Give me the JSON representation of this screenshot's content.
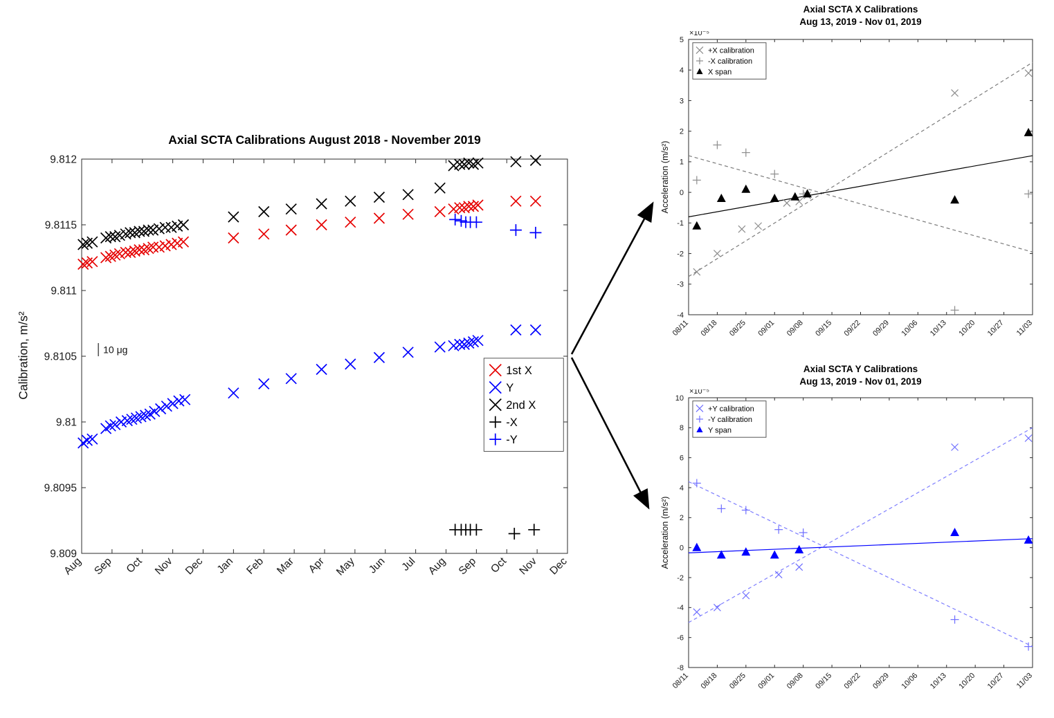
{
  "page": {
    "background": "#ffffff"
  },
  "chart_data": [
    {
      "id": "main",
      "type": "scatter",
      "title": "Axial SCTA Calibrations August 2018 - November 2019",
      "ylabel": "Calibration, m/s²",
      "xlim": [
        0,
        16
      ],
      "ylim": [
        9.809,
        9.812
      ],
      "xticks": {
        "labels": [
          "Aug",
          "Sep",
          "Oct",
          "Nov",
          "Dec",
          "Jan",
          "Feb",
          "Mar",
          "Apr",
          "May",
          "Jun",
          "Jul",
          "Aug",
          "Sep",
          "Oct",
          "Nov",
          "Dec"
        ],
        "pos": [
          0,
          1,
          2,
          3,
          4,
          5,
          6,
          7,
          8,
          9,
          10,
          11,
          12,
          13,
          14,
          15,
          16
        ]
      },
      "yticks": {
        "labels": [
          "9.809",
          "9.8095",
          "9.81",
          "9.8105",
          "9.811",
          "9.8115",
          "9.812"
        ],
        "pos": [
          9.809,
          9.8095,
          9.81,
          9.8105,
          9.811,
          9.8115,
          9.812
        ]
      },
      "annotation": {
        "text": "10 μg",
        "bar_x": 0.55,
        "bar_y1": 9.8105,
        "bar_y2": 9.8106
      },
      "legend": [
        {
          "label": "1st X",
          "marker": "x",
          "color": "#e60000"
        },
        {
          "label": "Y",
          "marker": "x",
          "color": "#0000ff"
        },
        {
          "label": "2nd X",
          "marker": "x",
          "color": "#000000"
        },
        {
          "label": "-X",
          "marker": "plus",
          "color": "#000000"
        },
        {
          "label": "-Y",
          "marker": "plus",
          "color": "#0000ff"
        }
      ],
      "series": [
        {
          "name": "1st X",
          "marker": "x",
          "color": "#e60000",
          "points": [
            [
              0.05,
              9.8112
            ],
            [
              0.18,
              9.81121
            ],
            [
              0.35,
              9.81122
            ],
            [
              0.8,
              9.81125
            ],
            [
              0.95,
              9.81126
            ],
            [
              1.1,
              9.81127
            ],
            [
              1.25,
              9.81128
            ],
            [
              1.45,
              9.81129
            ],
            [
              1.6,
              9.81129
            ],
            [
              1.75,
              9.8113
            ],
            [
              1.9,
              9.81131
            ],
            [
              2.05,
              9.81131
            ],
            [
              2.2,
              9.81132
            ],
            [
              2.35,
              9.81133
            ],
            [
              2.55,
              9.81133
            ],
            [
              2.75,
              9.81134
            ],
            [
              2.95,
              9.81135
            ],
            [
              3.15,
              9.81136
            ],
            [
              3.35,
              9.81137
            ],
            [
              5.0,
              9.8114
            ],
            [
              6.0,
              9.81143
            ],
            [
              6.9,
              9.81146
            ],
            [
              7.9,
              9.8115
            ],
            [
              8.85,
              9.81152
            ],
            [
              9.8,
              9.81155
            ],
            [
              10.75,
              9.81158
            ],
            [
              11.8,
              9.8116
            ],
            [
              12.25,
              9.81162
            ],
            [
              12.45,
              9.81163
            ],
            [
              12.6,
              9.81163
            ],
            [
              12.75,
              9.81164
            ],
            [
              12.9,
              9.81164
            ],
            [
              13.05,
              9.81165
            ],
            [
              14.3,
              9.81168
            ],
            [
              14.95,
              9.81168
            ]
          ]
        },
        {
          "name": "Y",
          "marker": "x",
          "color": "#0000ff",
          "points": [
            [
              0.05,
              9.80984
            ],
            [
              0.18,
              9.80986
            ],
            [
              0.35,
              9.80987
            ],
            [
              0.8,
              9.80995
            ],
            [
              0.95,
              9.80997
            ],
            [
              1.1,
              9.80998
            ],
            [
              1.3,
              9.81
            ],
            [
              1.5,
              9.81001
            ],
            [
              1.65,
              9.81002
            ],
            [
              1.8,
              9.81003
            ],
            [
              1.95,
              9.81004
            ],
            [
              2.1,
              9.81005
            ],
            [
              2.25,
              9.81006
            ],
            [
              2.4,
              9.81008
            ],
            [
              2.6,
              9.8101
            ],
            [
              2.8,
              9.81012
            ],
            [
              3.0,
              9.81014
            ],
            [
              3.2,
              9.81016
            ],
            [
              3.4,
              9.81017
            ],
            [
              5.0,
              9.81022
            ],
            [
              6.0,
              9.81029
            ],
            [
              6.9,
              9.81033
            ],
            [
              7.9,
              9.8104
            ],
            [
              8.85,
              9.81044
            ],
            [
              9.8,
              9.81049
            ],
            [
              10.75,
              9.81053
            ],
            [
              11.8,
              9.81057
            ],
            [
              12.25,
              9.81058
            ],
            [
              12.45,
              9.81059
            ],
            [
              12.6,
              9.81059
            ],
            [
              12.75,
              9.8106
            ],
            [
              12.9,
              9.81061
            ],
            [
              13.05,
              9.81062
            ],
            [
              14.3,
              9.8107
            ],
            [
              14.95,
              9.8107
            ]
          ]
        },
        {
          "name": "2nd X",
          "marker": "x",
          "color": "#000000",
          "points": [
            [
              0.05,
              9.81135
            ],
            [
              0.18,
              9.81136
            ],
            [
              0.35,
              9.81137
            ],
            [
              0.8,
              9.8114
            ],
            [
              0.95,
              9.81141
            ],
            [
              1.1,
              9.81141
            ],
            [
              1.25,
              9.81142
            ],
            [
              1.45,
              9.81143
            ],
            [
              1.6,
              9.81144
            ],
            [
              1.75,
              9.81144
            ],
            [
              1.9,
              9.81145
            ],
            [
              2.05,
              9.81145
            ],
            [
              2.2,
              9.81146
            ],
            [
              2.35,
              9.81146
            ],
            [
              2.55,
              9.81147
            ],
            [
              2.75,
              9.81148
            ],
            [
              2.95,
              9.81148
            ],
            [
              3.15,
              9.81149
            ],
            [
              3.35,
              9.8115
            ],
            [
              5.0,
              9.81156
            ],
            [
              6.0,
              9.8116
            ],
            [
              6.9,
              9.81162
            ],
            [
              7.9,
              9.81166
            ],
            [
              8.85,
              9.81168
            ],
            [
              9.8,
              9.81171
            ],
            [
              10.75,
              9.81173
            ],
            [
              11.8,
              9.81178
            ],
            [
              12.25,
              9.81195
            ],
            [
              12.45,
              9.81196
            ],
            [
              12.6,
              9.81196
            ],
            [
              12.75,
              9.81197
            ],
            [
              12.9,
              9.81196
            ],
            [
              13.05,
              9.81197
            ],
            [
              14.3,
              9.81198
            ],
            [
              14.95,
              9.81199
            ]
          ]
        },
        {
          "name": "-X",
          "marker": "plus",
          "color": "#000000",
          "points": [
            [
              12.3,
              9.80918
            ],
            [
              12.5,
              9.80918
            ],
            [
              12.65,
              9.80918
            ],
            [
              12.8,
              9.80918
            ],
            [
              13.0,
              9.80918
            ],
            [
              14.25,
              9.80915
            ],
            [
              14.9,
              9.80918
            ]
          ]
        },
        {
          "name": "-Y",
          "marker": "plus",
          "color": "#0000ff",
          "points": [
            [
              12.3,
              9.81154
            ],
            [
              12.5,
              9.81153
            ],
            [
              12.65,
              9.81152
            ],
            [
              12.8,
              9.81152
            ],
            [
              13.0,
              9.81152
            ],
            [
              14.3,
              9.81146
            ],
            [
              14.95,
              9.81144
            ]
          ]
        }
      ]
    },
    {
      "id": "xcal",
      "type": "scatter",
      "title": "Axial SCTA X Calibrations",
      "subtitle": "Aug 13, 2019 - Nov 01, 2019",
      "ylabel": "Acceleration (m/s²)",
      "y_multiplier": "×10⁻⁵",
      "xlim": [
        0,
        84
      ],
      "ylim": [
        -4,
        5
      ],
      "xticks": {
        "labels": [
          "08/11",
          "08/18",
          "08/25",
          "09/01",
          "09/08",
          "09/15",
          "09/22",
          "09/29",
          "10/06",
          "10/13",
          "10/20",
          "10/27",
          "11/03"
        ],
        "pos": [
          0,
          7,
          14,
          21,
          28,
          35,
          42,
          49,
          56,
          63,
          70,
          77,
          84
        ]
      },
      "yticks": {
        "labels": [
          "-4",
          "-3",
          "-2",
          "-1",
          "0",
          "1",
          "2",
          "3",
          "4",
          "5"
        ],
        "pos": [
          -4,
          -3,
          -2,
          -1,
          0,
          1,
          2,
          3,
          4,
          5
        ]
      },
      "legend": [
        {
          "label": "+X calibration",
          "marker": "x",
          "color": "#8c8c8c"
        },
        {
          "label": "-X calibration",
          "marker": "plus",
          "color": "#8c8c8c"
        },
        {
          "label": "X span",
          "marker": "tri",
          "color": "#000000"
        }
      ],
      "lines": [
        {
          "x": [
            0,
            84
          ],
          "y": [
            -2.75,
            4.25
          ],
          "dash": true,
          "color": "#7a7a7a"
        },
        {
          "x": [
            0,
            84
          ],
          "y": [
            1.2,
            -1.95
          ],
          "dash": true,
          "color": "#7a7a7a"
        },
        {
          "x": [
            0,
            84
          ],
          "y": [
            -0.8,
            1.2
          ],
          "dash": false,
          "color": "#000000"
        }
      ],
      "series": [
        {
          "name": "+X calibration",
          "marker": "x",
          "color": "#8c8c8c",
          "points": [
            [
              2,
              -2.6
            ],
            [
              7,
              -2.0
            ],
            [
              13,
              -1.2
            ],
            [
              17,
              -1.1
            ],
            [
              24,
              -0.35
            ],
            [
              27,
              -0.3
            ],
            [
              29,
              -0.1
            ],
            [
              65,
              3.25
            ],
            [
              83,
              3.9
            ]
          ]
        },
        {
          "name": "-X calibration",
          "marker": "plus",
          "color": "#8c8c8c",
          "points": [
            [
              2,
              0.4
            ],
            [
              7,
              1.55
            ],
            [
              14,
              1.3
            ],
            [
              21,
              0.6
            ],
            [
              28,
              -0.05
            ],
            [
              65,
              -3.85
            ],
            [
              83,
              -0.05
            ]
          ]
        },
        {
          "name": "X span",
          "marker": "tri",
          "color": "#000000",
          "points": [
            [
              2,
              -1.1
            ],
            [
              8,
              -0.2
            ],
            [
              14,
              0.1
            ],
            [
              21,
              -0.2
            ],
            [
              26,
              -0.15
            ],
            [
              29,
              -0.05
            ],
            [
              65,
              -0.25
            ],
            [
              83,
              1.95
            ]
          ]
        }
      ]
    },
    {
      "id": "ycal",
      "type": "scatter",
      "title": "Axial SCTA Y Calibrations",
      "subtitle": "Aug 13, 2019 - Nov 01, 2019",
      "ylabel": "Acceleration (m/s²)",
      "y_multiplier": "×10⁻⁵",
      "xlim": [
        0,
        84
      ],
      "ylim": [
        -8,
        10
      ],
      "xticks": {
        "labels": [
          "08/11",
          "08/18",
          "08/25",
          "09/01",
          "09/08",
          "09/15",
          "09/22",
          "09/29",
          "10/06",
          "10/13",
          "10/20",
          "10/27",
          "11/03"
        ],
        "pos": [
          0,
          7,
          14,
          21,
          28,
          35,
          42,
          49,
          56,
          63,
          70,
          77,
          84
        ]
      },
      "yticks": {
        "labels": [
          "-8",
          "-6",
          "-4",
          "-2",
          "0",
          "2",
          "4",
          "6",
          "8",
          "10"
        ],
        "pos": [
          -8,
          -6,
          -4,
          -2,
          0,
          2,
          4,
          6,
          8,
          10
        ]
      },
      "legend": [
        {
          "label": "+Y calibration",
          "marker": "x",
          "color": "#6d6dff"
        },
        {
          "label": "-Y calibration",
          "marker": "plus",
          "color": "#6d6dff"
        },
        {
          "label": "Y span",
          "marker": "tri",
          "color": "#0000ff"
        }
      ],
      "lines": [
        {
          "x": [
            0,
            84
          ],
          "y": [
            -5.0,
            8.0
          ],
          "dash": true,
          "color": "#7d7dff"
        },
        {
          "x": [
            0,
            84
          ],
          "y": [
            4.4,
            -6.6
          ],
          "dash": true,
          "color": "#7d7dff"
        },
        {
          "x": [
            0,
            84
          ],
          "y": [
            -0.35,
            0.6
          ],
          "dash": false,
          "color": "#0000ff"
        }
      ],
      "series": [
        {
          "name": "+Y calibration",
          "marker": "x",
          "color": "#6d6dff",
          "points": [
            [
              2,
              -4.3
            ],
            [
              7,
              -4.0
            ],
            [
              14,
              -3.2
            ],
            [
              22,
              -1.8
            ],
            [
              27,
              -1.3
            ],
            [
              65,
              6.7
            ],
            [
              83,
              7.3
            ]
          ]
        },
        {
          "name": "-Y calibration",
          "marker": "plus",
          "color": "#6d6dff",
          "points": [
            [
              2,
              4.3
            ],
            [
              8,
              2.6
            ],
            [
              14,
              2.5
            ],
            [
              22,
              1.2
            ],
            [
              28,
              1.0
            ],
            [
              65,
              -4.8
            ],
            [
              83,
              -6.6
            ]
          ]
        },
        {
          "name": "Y span",
          "marker": "tri",
          "color": "#0000ff",
          "points": [
            [
              2,
              0.0
            ],
            [
              8,
              -0.5
            ],
            [
              14,
              -0.3
            ],
            [
              21,
              -0.5
            ],
            [
              27,
              -0.15
            ],
            [
              65,
              1.0
            ],
            [
              83,
              0.5
            ]
          ]
        }
      ]
    }
  ]
}
